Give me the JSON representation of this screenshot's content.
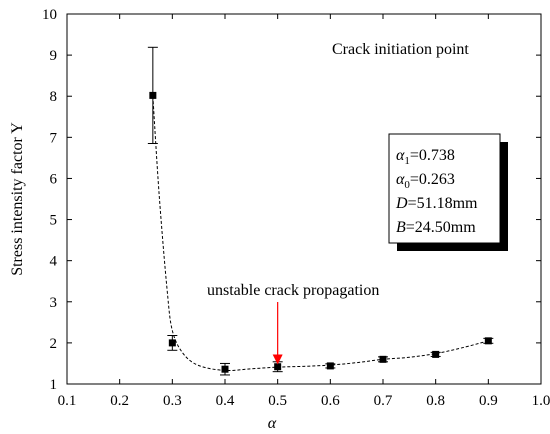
{
  "chart_data": {
    "type": "scatter",
    "title": "",
    "annotation_title": "Crack initiation point",
    "annotation_text": "unstable crack propagation",
    "annotation_target": {
      "x": 0.5,
      "y": 1.45
    },
    "xlabel": "α",
    "ylabel": "Stress intensity factor Y",
    "xlim": [
      0.1,
      1.0
    ],
    "ylim": [
      1,
      10
    ],
    "xticks": [
      "0.1",
      "0.2",
      "0.3",
      "0.4",
      "0.5",
      "0.6",
      "0.7",
      "0.8",
      "0.9",
      "1.0"
    ],
    "yticks": [
      "1",
      "2",
      "3",
      "4",
      "5",
      "6",
      "7",
      "8",
      "9",
      "10"
    ],
    "grid": false,
    "series": [
      {
        "x": [
          0.263,
          0.3,
          0.4,
          0.5,
          0.6,
          0.7,
          0.8,
          0.9
        ],
        "y": [
          8.02,
          2.0,
          1.36,
          1.42,
          1.44,
          1.6,
          1.72,
          2.05
        ],
        "err": [
          1.17,
          0.18,
          0.14,
          0.12,
          0.05,
          0.06,
          0.05,
          0.06
        ],
        "marker": "square",
        "color": "#000000"
      }
    ],
    "fit_curve": {
      "style": "dashed",
      "x": [
        0.263,
        0.275,
        0.29,
        0.3,
        0.32,
        0.35,
        0.4,
        0.45,
        0.5,
        0.55,
        0.6,
        0.65,
        0.7,
        0.75,
        0.8,
        0.85,
        0.9
      ],
      "y": [
        8.0,
        5.6,
        3.3,
        2.3,
        1.75,
        1.45,
        1.33,
        1.37,
        1.41,
        1.43,
        1.46,
        1.52,
        1.6,
        1.65,
        1.74,
        1.88,
        2.05
      ]
    },
    "parameters": [
      {
        "symbol": "α",
        "sub": "1",
        "value": "=0.738"
      },
      {
        "symbol": "α",
        "sub": "0",
        "value": "=0.263"
      },
      {
        "symbol": "D",
        "sub": "",
        "value": "=51.18mm"
      },
      {
        "symbol": "B",
        "sub": "",
        "value": "=24.50mm"
      }
    ],
    "accent_color": "#ff0000"
  }
}
